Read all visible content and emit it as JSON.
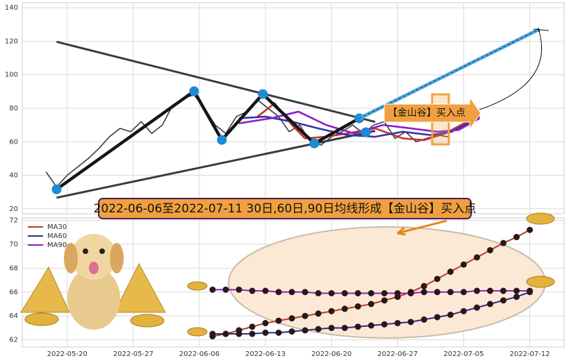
{
  "chart_data": [
    {
      "type": "line",
      "ylim": [
        17,
        143
      ],
      "yticks": [
        20,
        40,
        60,
        80,
        100,
        120,
        140
      ],
      "xlim": [
        -3.4,
        37.6
      ],
      "grid": true,
      "annotation": "【金山谷】买入点",
      "series": [
        {
          "style": "thin",
          "color": "#363a48",
          "x": [
            -1.6,
            -0.8,
            0,
            0.8,
            1.6,
            2.4,
            3.2,
            4.0,
            4.8,
            5.6,
            6.4,
            7.2,
            8.0,
            8.8,
            9.6,
            10.4,
            11.2,
            12.0,
            12.8,
            13.6,
            14.4,
            15.2,
            16.0,
            16.8,
            17.6,
            18.4,
            19.2,
            20.0,
            20.8,
            21.6,
            22.4,
            23.2,
            24.0,
            24.8,
            25.6,
            26.4,
            27.2,
            28.0,
            28.8
          ],
          "values": [
            42,
            33,
            40,
            45,
            50,
            56,
            63,
            68,
            66,
            72,
            65,
            70,
            82,
            86,
            88,
            80,
            70,
            65,
            75,
            78,
            85,
            80,
            75,
            66,
            70,
            60,
            58,
            63,
            66,
            70,
            65,
            70,
            72,
            62,
            66,
            60,
            62,
            64,
            63
          ]
        },
        {
          "style": "trend",
          "color": "#3a3a46",
          "x": [
            -0.8,
            23.3
          ],
          "values": [
            119.7,
            71.9
          ]
        },
        {
          "style": "trend",
          "color": "#3a3a46",
          "x": [
            -0.8,
            23.3
          ],
          "values": [
            26.6,
            66.5
          ]
        },
        {
          "style": "ma",
          "color": "#c8322a",
          "x": [
            14.4,
            15.7,
            17,
            18,
            19.6,
            21.2,
            23.3,
            25.4,
            27,
            28.6,
            31.2
          ],
          "values": [
            75,
            83,
            70,
            62,
            63,
            65,
            68,
            62,
            61,
            65,
            76
          ]
        },
        {
          "style": "ma",
          "color": "#3434a0",
          "x": [
            13,
            15,
            17,
            19,
            21.2,
            23.3,
            25.4,
            27.5,
            29.1,
            31.2
          ],
          "values": [
            74,
            75,
            72,
            68,
            64,
            63,
            66,
            64,
            66,
            75
          ]
        },
        {
          "style": "ma",
          "color": "#8a1ec8",
          "x": [
            13,
            15.4,
            17.5,
            19.6,
            21.7,
            23.9,
            26,
            28,
            29.6,
            31.2
          ],
          "values": [
            71,
            74,
            78,
            70,
            65,
            70,
            68,
            66,
            67,
            74
          ]
        },
        {
          "style": "zigzag",
          "color": "#151515",
          "marker": "#1b8bd6",
          "x": [
            -0.8,
            9.6,
            11.7,
            14.8,
            18.7,
            22.1
          ],
          "values": [
            31.6,
            90.2,
            61.1,
            88.5,
            59,
            74
          ]
        },
        {
          "style": "markers",
          "marker": "#1b8bd6",
          "x": [
            22.6
          ],
          "values": [
            65.7
          ]
        },
        {
          "style": "projection",
          "color": "#4aa8e0",
          "x": [
            22.1,
            35.7
          ],
          "values": [
            74,
            127.1
          ]
        }
      ]
    },
    {
      "type": "line",
      "title": "2022-06-06至2022-07-11 30日,60日,90日均线形成【金山谷】买入点",
      "ylim": [
        61.4,
        72.2
      ],
      "yticks": [
        62,
        64,
        66,
        68,
        70,
        72
      ],
      "xlim": [
        -3.4,
        37.6
      ],
      "grid": true,
      "legend": "upper left",
      "xticks": [
        {
          "value": 0,
          "label": "2022-05-20"
        },
        {
          "value": 5,
          "label": "2022-05-27"
        },
        {
          "value": 10,
          "label": "2022-06-06"
        },
        {
          "value": 15,
          "label": "2022-06-13"
        },
        {
          "value": 20,
          "label": "2022-06-20"
        },
        {
          "value": 25,
          "label": "2022-06-27"
        },
        {
          "value": 30,
          "label": "2022-07-05"
        },
        {
          "value": 35,
          "label": "2022-07-12"
        }
      ],
      "x": [
        11,
        12,
        13,
        14,
        15,
        16,
        17,
        18,
        19,
        20,
        21,
        22,
        23,
        24,
        25,
        26,
        27,
        28,
        29,
        30,
        31,
        32,
        33,
        34,
        35
      ],
      "series": [
        {
          "name": "MA30",
          "color": "#c0392b",
          "values": [
            62.3,
            62.5,
            62.8,
            63.1,
            63.4,
            63.6,
            63.8,
            64.0,
            64.2,
            64.4,
            64.6,
            64.8,
            65.0,
            65.3,
            65.6,
            66.0,
            66.5,
            67.1,
            67.7,
            68.3,
            68.9,
            69.5,
            70.1,
            70.6,
            71.2
          ]
        },
        {
          "name": "MA60",
          "color": "#2c2c8c",
          "values": [
            62.5,
            62.5,
            62.5,
            62.5,
            62.6,
            62.6,
            62.7,
            62.8,
            62.9,
            63.0,
            63.0,
            63.1,
            63.2,
            63.3,
            63.4,
            63.5,
            63.7,
            63.9,
            64.1,
            64.4,
            64.7,
            65.0,
            65.3,
            65.6,
            66.0
          ]
        },
        {
          "name": "MA90",
          "color": "#8e1fc4",
          "values": [
            66.2,
            66.2,
            66.2,
            66.1,
            66.1,
            66.0,
            66.0,
            66.0,
            65.9,
            65.9,
            65.9,
            65.9,
            65.9,
            65.9,
            65.9,
            65.9,
            66.0,
            66.0,
            66.0,
            66.0,
            66.1,
            66.1,
            66.1,
            66.1,
            66.1
          ]
        }
      ]
    }
  ]
}
